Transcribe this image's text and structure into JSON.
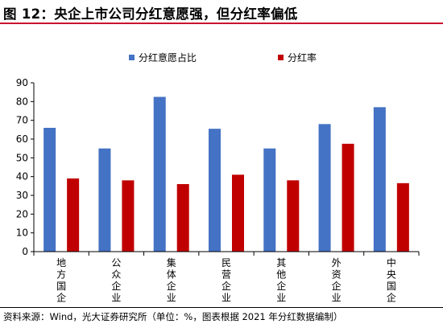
{
  "title": "图 12：央企上市公司分红意愿强，但分红率偏低",
  "source": "资料来源：Wind，光大证券研究所（单位：%，图表根据 2021 年分红数据编制）",
  "chart_data": {
    "type": "bar",
    "categories": [
      "地方国企",
      "公众企业",
      "集体企业",
      "民营企业",
      "其他企业",
      "外资企业",
      "中央国企"
    ],
    "series": [
      {
        "name": "分红意愿占比",
        "color": "#4472c4",
        "values": [
          66,
          55,
          82.5,
          65.5,
          55,
          68,
          77
        ]
      },
      {
        "name": "分红率",
        "color": "#c00000",
        "values": [
          39,
          38,
          36,
          41,
          38,
          57.5,
          36.5
        ]
      }
    ],
    "ylim": [
      0,
      90
    ],
    "yticks": [
      0,
      10,
      20,
      30,
      40,
      50,
      60,
      70,
      80,
      90
    ],
    "legend_position": "top-center",
    "grid": false,
    "xlabel": "",
    "ylabel": ""
  }
}
